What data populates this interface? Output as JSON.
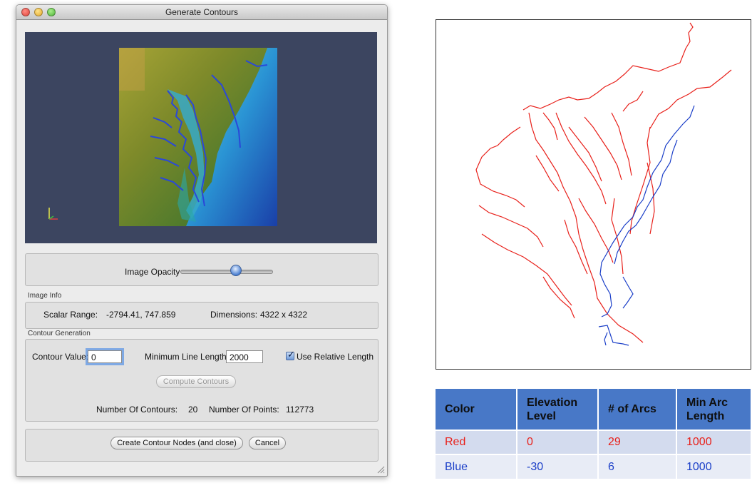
{
  "window": {
    "title": "Generate Contours"
  },
  "opacity": {
    "label": "Image Opacity",
    "value": 0.6
  },
  "image_info": {
    "section_label": "Image Info",
    "scalar_range_label": "Scalar Range:",
    "scalar_range_value": "-2794.41, 747.859",
    "dimensions_label": "Dimensions:",
    "dimensions_value": "4322 x 4322"
  },
  "contour_generation": {
    "section_label": "Contour Generation",
    "contour_value_label": "Contour Value:",
    "contour_value": "0",
    "min_line_length_label": "Minimum Line Length:",
    "min_line_length": "2000",
    "use_relative_length_label": "Use Relative Length",
    "use_relative_length_checked": true,
    "compute_button": "Compute Contours",
    "num_contours_label": "Number Of Contours:",
    "num_contours": "20",
    "num_points_label": "Number Of Points:",
    "num_points": "112773"
  },
  "actions": {
    "create_button": "Create Contour Nodes (and close)",
    "cancel_button": "Cancel"
  },
  "legend_table": {
    "headers": [
      "Color",
      "Elevation Level",
      "# of Arcs",
      "Min Arc Length"
    ],
    "rows": [
      [
        "Red",
        "0",
        "29",
        "1000"
      ],
      [
        "Blue",
        "-30",
        "6",
        "1000"
      ]
    ]
  },
  "colors": {
    "contour_red": "#e8201a",
    "contour_blue": "#1a3ec8",
    "table_header": "#4878c7"
  }
}
